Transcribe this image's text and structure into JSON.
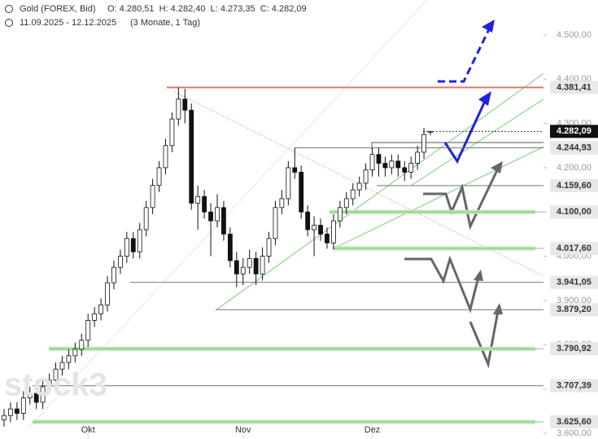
{
  "chart_data": {
    "type": "candlestick",
    "title": "Gold (FOREX, Bid)",
    "info": "O: 4.280,51  H: 4.282,40  L: 4.273,35  C: 4.282,09",
    "period": "11.09.2025 - 12.12.2025",
    "range": "(3 Monate, 1 Tag)",
    "watermark": "stock3",
    "ylim": [
      3587,
      4579
    ],
    "yticks": [
      {
        "value": 3600,
        "label": "3.600,00"
      },
      {
        "value": 3700,
        "label": "3.700,00"
      },
      {
        "value": 3800,
        "label": "3.800,00"
      },
      {
        "value": 3900,
        "label": "3.900,00"
      },
      {
        "value": 4000,
        "label": "4.000,00"
      },
      {
        "value": 4100,
        "label": "4.100,00"
      },
      {
        "value": 4200,
        "label": "4.200,00"
      },
      {
        "value": 4300,
        "label": "4.300,00"
      },
      {
        "value": 4400,
        "label": "4.400,00"
      },
      {
        "value": 4500,
        "label": "4.500,00"
      }
    ],
    "up_color": "#ffffff",
    "down_color": "#111111",
    "categories": [
      null,
      null,
      null,
      null,
      null,
      null,
      null,
      null,
      null,
      null,
      null,
      null,
      null,
      "Okt",
      null,
      null,
      null,
      null,
      null,
      null,
      null,
      null,
      null,
      null,
      null,
      null,
      null,
      null,
      null,
      null,
      null,
      null,
      null,
      null,
      null,
      null,
      null,
      "Nov",
      null,
      null,
      null,
      null,
      null,
      null,
      null,
      null,
      null,
      null,
      null,
      null,
      null,
      null,
      null,
      null,
      null,
      null,
      null,
      "Dez",
      null,
      null,
      null,
      null,
      null,
      null,
      null,
      null,
      null
    ],
    "candles": [
      [
        3630,
        3655,
        3615,
        3640
      ],
      [
        3640,
        3670,
        3625,
        3655
      ],
      [
        3655,
        3670,
        3630,
        3645
      ],
      [
        3645,
        3695,
        3630,
        3680
      ],
      [
        3680,
        3705,
        3665,
        3690
      ],
      [
        3690,
        3705,
        3655,
        3670
      ],
      [
        3670,
        3720,
        3655,
        3705
      ],
      [
        3705,
        3735,
        3690,
        3720
      ],
      [
        3720,
        3760,
        3705,
        3745
      ],
      [
        3745,
        3775,
        3730,
        3760
      ],
      [
        3760,
        3790,
        3745,
        3775
      ],
      [
        3775,
        3805,
        3760,
        3790
      ],
      [
        3790,
        3825,
        3775,
        3810
      ],
      [
        3810,
        3870,
        3795,
        3855
      ],
      [
        3855,
        3885,
        3840,
        3870
      ],
      [
        3870,
        3905,
        3855,
        3890
      ],
      [
        3890,
        3955,
        3875,
        3940
      ],
      [
        3940,
        3990,
        3925,
        3975
      ],
      [
        3975,
        4015,
        3960,
        4000
      ],
      [
        4000,
        4055,
        3985,
        4040
      ],
      [
        4040,
        4055,
        3995,
        4010
      ],
      [
        4010,
        4075,
        3995,
        4060
      ],
      [
        4060,
        4125,
        4045,
        4110
      ],
      [
        4110,
        4175,
        4095,
        4160
      ],
      [
        4160,
        4215,
        4145,
        4200
      ],
      [
        4200,
        4265,
        4185,
        4250
      ],
      [
        4250,
        4325,
        4235,
        4310
      ],
      [
        4310,
        4381,
        4295,
        4355
      ],
      [
        4355,
        4378,
        4300,
        4330
      ],
      [
        4330,
        4345,
        4105,
        4120
      ],
      [
        4120,
        4160,
        4060,
        4135
      ],
      [
        4135,
        4150,
        4085,
        4100
      ],
      [
        4100,
        4120,
        4000,
        4080
      ],
      [
        4080,
        4140,
        4065,
        4110
      ],
      [
        4110,
        4125,
        4035,
        4050
      ],
      [
        4050,
        4065,
        3975,
        3990
      ],
      [
        3990,
        4010,
        3930,
        3960
      ],
      [
        3960,
        3995,
        3935,
        3975
      ],
      [
        3975,
        4015,
        3960,
        3995
      ],
      [
        3995,
        4010,
        3935,
        3960
      ],
      [
        3960,
        4020,
        3945,
        4000
      ],
      [
        4000,
        4055,
        3985,
        4040
      ],
      [
        4040,
        4125,
        4025,
        4110
      ],
      [
        4110,
        4150,
        4095,
        4130
      ],
      [
        4130,
        4215,
        4115,
        4200
      ],
      [
        4200,
        4245,
        4175,
        4190
      ],
      [
        4190,
        4205,
        4085,
        4100
      ],
      [
        4100,
        4115,
        4045,
        4060
      ],
      [
        4060,
        4090,
        4000,
        4070
      ],
      [
        4070,
        4085,
        4035,
        4050
      ],
      [
        4050,
        4065,
        4017,
        4030
      ],
      [
        4030,
        4095,
        4015,
        4080
      ],
      [
        4080,
        4125,
        4065,
        4110
      ],
      [
        4110,
        4145,
        4095,
        4130
      ],
      [
        4130,
        4165,
        4115,
        4150
      ],
      [
        4150,
        4180,
        4135,
        4165
      ],
      [
        4165,
        4210,
        4150,
        4195
      ],
      [
        4195,
        4245,
        4180,
        4230
      ],
      [
        4230,
        4245,
        4180,
        4210
      ],
      [
        4210,
        4225,
        4180,
        4200
      ],
      [
        4200,
        4230,
        4185,
        4215
      ],
      [
        4215,
        4230,
        4180,
        4200
      ],
      [
        4200,
        4215,
        4170,
        4190
      ],
      [
        4190,
        4225,
        4175,
        4210
      ],
      [
        4210,
        4250,
        4195,
        4235
      ],
      [
        4235,
        4290,
        4220,
        4275
      ],
      [
        4280.51,
        4282.4,
        4273.35,
        4282.09
      ]
    ],
    "levels": [
      {
        "value": 4381.41,
        "label": "4.381,41",
        "color": "#d9534f"
      },
      {
        "value": 4282.09,
        "label": "4.282,09",
        "color": "#333333",
        "current": true
      },
      {
        "value": 4244.93,
        "label": "4.244,93",
        "color": "#777777"
      },
      {
        "value": 4159.6,
        "label": "4.159,60",
        "color": "#777777"
      },
      {
        "value": 4100,
        "label": "4.100,00",
        "color": "#b9e6b3"
      },
      {
        "value": 4017.6,
        "label": "4.017,60",
        "color": "#b9e6b3"
      },
      {
        "value": 3941.05,
        "label": "3.941,05",
        "color": "#777777"
      },
      {
        "value": 3879.2,
        "label": "3.879,20",
        "color": "#777777"
      },
      {
        "value": 3790.92,
        "label": "3.790,92",
        "color": "#b9e6b3"
      },
      {
        "value": 3707.39,
        "label": "3.707,39",
        "color": "#777777"
      },
      {
        "value": 3625.6,
        "label": "3.625,60",
        "color": "#b9e6b3"
      }
    ]
  }
}
